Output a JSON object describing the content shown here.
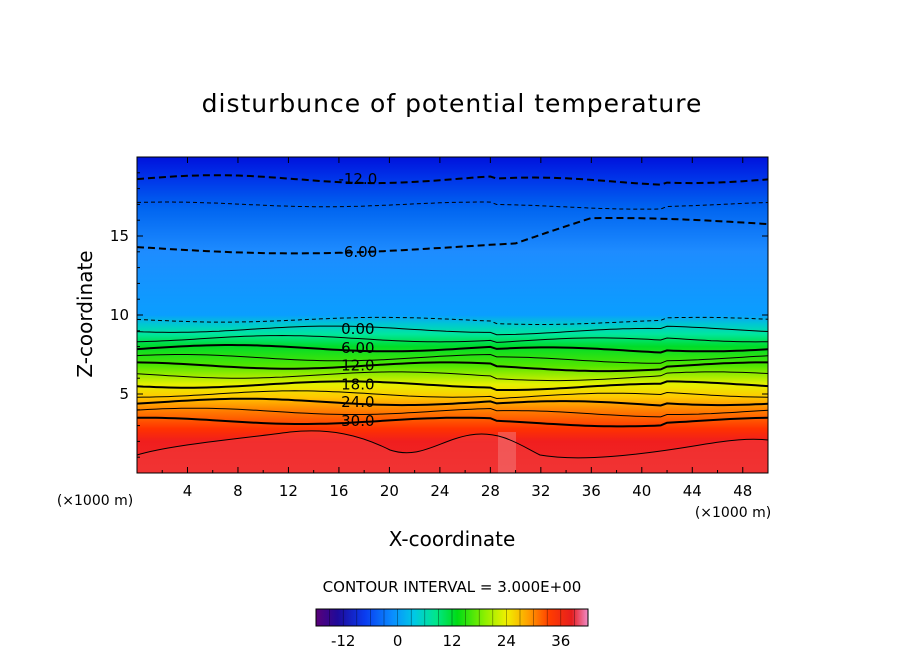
{
  "chart_data": {
    "type": "heatmap",
    "title": "disturbunce of potential temperature",
    "xlabel": "X-coordinate",
    "ylabel": "Z-coordinate",
    "x_unit": "(×1000 m)",
    "y_unit": "(×1000 m)",
    "xlim": [
      0,
      50
    ],
    "ylim": [
      0,
      20
    ],
    "x_ticks": [
      "4",
      "8",
      "12",
      "16",
      "20",
      "24",
      "28",
      "32",
      "36",
      "40",
      "44",
      "48"
    ],
    "y_ticks": [
      "5",
      "10",
      "15"
    ],
    "contour_interval_text": "CONTOUR INTERVAL = 3.000E+00",
    "contour_labels": [
      {
        "text": "-12.0",
        "x": 17.5,
        "z": 18.6
      },
      {
        "text": "-6.00",
        "x": 17.5,
        "z": 14.0
      },
      {
        "text": "0.00",
        "x": 17.5,
        "z": 9.1
      },
      {
        "text": "6.00",
        "x": 17.5,
        "z": 7.9
      },
      {
        "text": "12.0",
        "x": 17.5,
        "z": 6.8
      },
      {
        "text": "18.0",
        "x": 17.5,
        "z": 5.6
      },
      {
        "text": "24.0",
        "x": 17.5,
        "z": 4.5
      },
      {
        "text": "30.0",
        "x": 17.5,
        "z": 3.3
      }
    ],
    "colorbar": {
      "min": -18,
      "max": 42,
      "ticks": [
        "-12",
        "0",
        "12",
        "24",
        "36"
      ],
      "tick_values": [
        -12,
        0,
        12,
        24,
        36
      ]
    }
  }
}
